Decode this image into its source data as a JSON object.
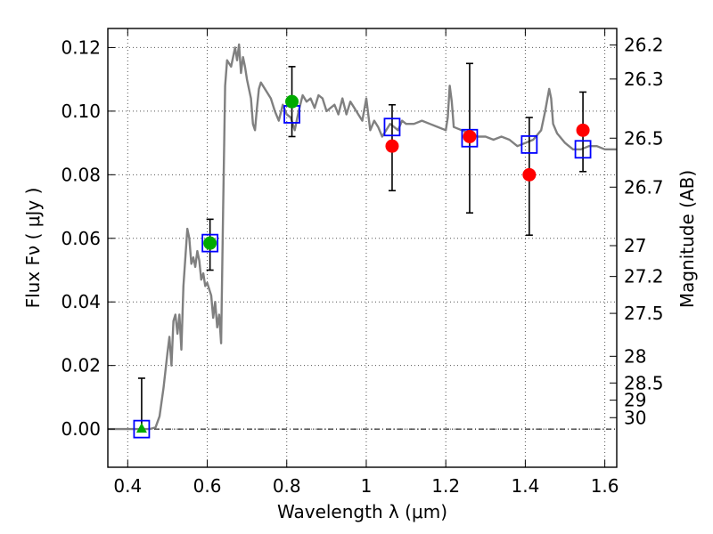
{
  "chart_data": {
    "type": "scatter",
    "xlabel": "Wavelength  λ (μm)",
    "ylabel": "Flux  Fν  ( μJy )",
    "ylabel_right": "Magnitude (AB)",
    "xlim": [
      0.35,
      1.63
    ],
    "ylim": [
      -0.012,
      0.126
    ],
    "grid": true,
    "x_ticks": [
      0.4,
      0.6,
      0.8,
      1.0,
      1.2,
      1.4,
      1.6
    ],
    "x_tick_labels": [
      "0.4",
      "0.6",
      "0.8",
      "1",
      "1.2",
      "1.4",
      "1.6"
    ],
    "y_ticks": [
      0.0,
      0.02,
      0.04,
      0.06,
      0.08,
      0.1,
      0.12
    ],
    "y_tick_labels": [
      "0.00",
      "0.02",
      "0.04",
      "0.06",
      "0.08",
      "0.10",
      "0.12"
    ],
    "right_ticks": [
      {
        "label": "26.2",
        "flux": 0.1208
      },
      {
        "label": "26.3",
        "flux": 0.1101
      },
      {
        "label": "26.5",
        "flux": 0.0915
      },
      {
        "label": "26.7",
        "flux": 0.0761
      },
      {
        "label": "27",
        "flux": 0.0577
      },
      {
        "label": "27.2",
        "flux": 0.048
      },
      {
        "label": "27.5",
        "flux": 0.0364
      },
      {
        "label": "28",
        "flux": 0.0229
      },
      {
        "label": "28.5",
        "flux": 0.0145
      },
      {
        "label": "29",
        "flux": 0.0091
      },
      {
        "label": "30",
        "flux": 0.0036
      }
    ],
    "zero_line": 0.0,
    "series": [
      {
        "kind": "line",
        "color": "#808080",
        "points": [
          [
            0.35,
            0.0
          ],
          [
            0.455,
            0.0
          ],
          [
            0.47,
            0.0005
          ],
          [
            0.48,
            0.004
          ],
          [
            0.49,
            0.013
          ],
          [
            0.5,
            0.024
          ],
          [
            0.505,
            0.029
          ],
          [
            0.51,
            0.02
          ],
          [
            0.515,
            0.034
          ],
          [
            0.52,
            0.036
          ],
          [
            0.525,
            0.03
          ],
          [
            0.53,
            0.036
          ],
          [
            0.535,
            0.025
          ],
          [
            0.54,
            0.045
          ],
          [
            0.55,
            0.063
          ],
          [
            0.555,
            0.06
          ],
          [
            0.56,
            0.052
          ],
          [
            0.565,
            0.054
          ],
          [
            0.57,
            0.051
          ],
          [
            0.575,
            0.056
          ],
          [
            0.58,
            0.053
          ],
          [
            0.585,
            0.047
          ],
          [
            0.59,
            0.049
          ],
          [
            0.595,
            0.045
          ],
          [
            0.6,
            0.046
          ],
          [
            0.61,
            0.042
          ],
          [
            0.615,
            0.035
          ],
          [
            0.62,
            0.04
          ],
          [
            0.625,
            0.032
          ],
          [
            0.63,
            0.036
          ],
          [
            0.635,
            0.027
          ],
          [
            0.64,
            0.07
          ],
          [
            0.645,
            0.108
          ],
          [
            0.65,
            0.116
          ],
          [
            0.66,
            0.114
          ],
          [
            0.665,
            0.117
          ],
          [
            0.67,
            0.12
          ],
          [
            0.675,
            0.116
          ],
          [
            0.68,
            0.121
          ],
          [
            0.685,
            0.112
          ],
          [
            0.69,
            0.117
          ],
          [
            0.695,
            0.114
          ],
          [
            0.7,
            0.11
          ],
          [
            0.71,
            0.104
          ],
          [
            0.715,
            0.096
          ],
          [
            0.72,
            0.094
          ],
          [
            0.725,
            0.101
          ],
          [
            0.73,
            0.107
          ],
          [
            0.735,
            0.109
          ],
          [
            0.74,
            0.108
          ],
          [
            0.75,
            0.106
          ],
          [
            0.76,
            0.104
          ],
          [
            0.77,
            0.1
          ],
          [
            0.78,
            0.097
          ],
          [
            0.79,
            0.102
          ],
          [
            0.8,
            0.099
          ],
          [
            0.81,
            0.098
          ],
          [
            0.82,
            0.094
          ],
          [
            0.83,
            0.1
          ],
          [
            0.84,
            0.105
          ],
          [
            0.85,
            0.103
          ],
          [
            0.86,
            0.104
          ],
          [
            0.87,
            0.101
          ],
          [
            0.88,
            0.105
          ],
          [
            0.89,
            0.104
          ],
          [
            0.9,
            0.1
          ],
          [
            0.91,
            0.101
          ],
          [
            0.92,
            0.102
          ],
          [
            0.93,
            0.099
          ],
          [
            0.94,
            0.104
          ],
          [
            0.95,
            0.099
          ],
          [
            0.96,
            0.103
          ],
          [
            0.97,
            0.101
          ],
          [
            0.98,
            0.099
          ],
          [
            0.99,
            0.097
          ],
          [
            1.0,
            0.104
          ],
          [
            1.01,
            0.094
          ],
          [
            1.02,
            0.097
          ],
          [
            1.03,
            0.095
          ],
          [
            1.04,
            0.092
          ],
          [
            1.05,
            0.094
          ],
          [
            1.06,
            0.096
          ],
          [
            1.07,
            0.095
          ],
          [
            1.08,
            0.094
          ],
          [
            1.09,
            0.097
          ],
          [
            1.1,
            0.096
          ],
          [
            1.12,
            0.096
          ],
          [
            1.14,
            0.097
          ],
          [
            1.16,
            0.096
          ],
          [
            1.18,
            0.095
          ],
          [
            1.2,
            0.094
          ],
          [
            1.205,
            0.098
          ],
          [
            1.21,
            0.108
          ],
          [
            1.215,
            0.103
          ],
          [
            1.22,
            0.095
          ],
          [
            1.24,
            0.094
          ],
          [
            1.26,
            0.093
          ],
          [
            1.28,
            0.092
          ],
          [
            1.3,
            0.092
          ],
          [
            1.32,
            0.091
          ],
          [
            1.34,
            0.092
          ],
          [
            1.36,
            0.091
          ],
          [
            1.38,
            0.089
          ],
          [
            1.4,
            0.09
          ],
          [
            1.42,
            0.091
          ],
          [
            1.44,
            0.094
          ],
          [
            1.45,
            0.1
          ],
          [
            1.46,
            0.107
          ],
          [
            1.465,
            0.104
          ],
          [
            1.47,
            0.096
          ],
          [
            1.48,
            0.093
          ],
          [
            1.5,
            0.09
          ],
          [
            1.52,
            0.088
          ],
          [
            1.54,
            0.088
          ],
          [
            1.56,
            0.089
          ],
          [
            1.58,
            0.089
          ],
          [
            1.6,
            0.088
          ],
          [
            1.63,
            0.088
          ]
        ]
      },
      {
        "kind": "squares",
        "color": "#0000ff",
        "points": [
          [
            0.435,
            0.0
          ],
          [
            0.607,
            0.0585
          ],
          [
            0.813,
            0.099
          ],
          [
            1.065,
            0.095
          ],
          [
            1.26,
            0.0915
          ],
          [
            1.41,
            0.0895
          ],
          [
            1.545,
            0.088
          ]
        ]
      },
      {
        "kind": "points",
        "points": [
          {
            "x": 0.435,
            "y": 0.0,
            "color": "#00aa00",
            "marker": "triangle",
            "yerr": [
              0.0,
              0.016
            ]
          },
          {
            "x": 0.607,
            "y": 0.0585,
            "color": "#00aa00",
            "marker": "circle",
            "yerr": [
              0.05,
              0.066
            ]
          },
          {
            "x": 0.813,
            "y": 0.103,
            "color": "#00aa00",
            "marker": "circle",
            "yerr": [
              0.092,
              0.114
            ]
          },
          {
            "x": 1.065,
            "y": 0.089,
            "color": "#ff0000",
            "marker": "circle",
            "yerr": [
              0.075,
              0.102
            ]
          },
          {
            "x": 1.26,
            "y": 0.092,
            "color": "#ff0000",
            "marker": "circle",
            "yerr": [
              0.068,
              0.115
            ]
          },
          {
            "x": 1.41,
            "y": 0.08,
            "color": "#ff0000",
            "marker": "circle",
            "yerr": [
              0.061,
              0.098
            ]
          },
          {
            "x": 1.545,
            "y": 0.094,
            "color": "#ff0000",
            "marker": "circle",
            "yerr": [
              0.081,
              0.106
            ]
          }
        ]
      }
    ]
  }
}
